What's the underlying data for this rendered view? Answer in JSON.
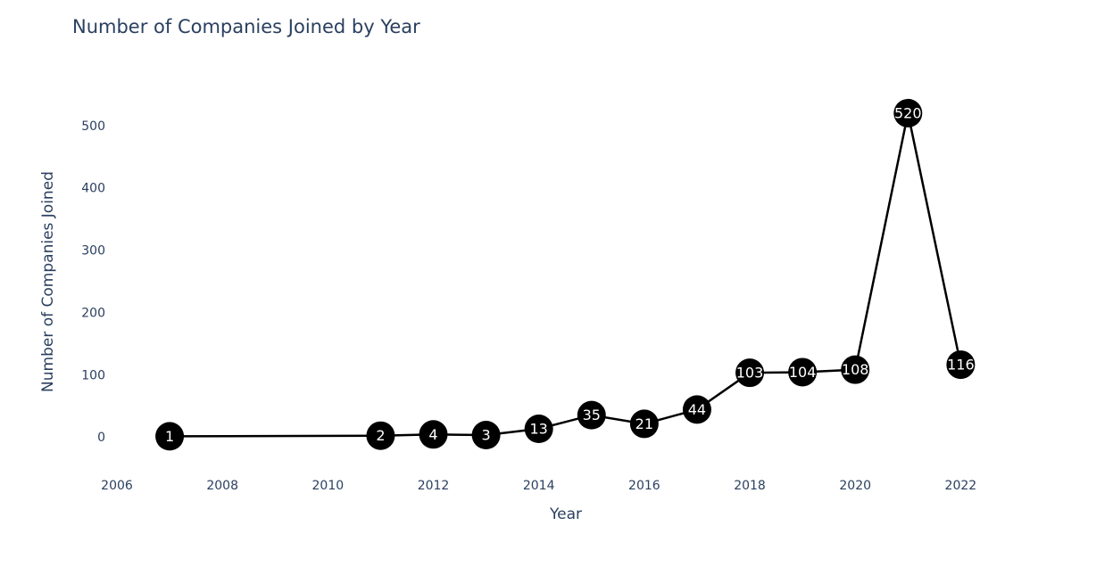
{
  "chart_data": {
    "type": "line",
    "title": "Number of Companies Joined by Year",
    "xlabel": "Year",
    "ylabel": "Number of Companies Joined",
    "x": [
      2007,
      2011,
      2012,
      2013,
      2014,
      2015,
      2016,
      2017,
      2018,
      2019,
      2020,
      2021,
      2022
    ],
    "y": [
      1,
      2,
      4,
      3,
      13,
      35,
      21,
      44,
      103,
      104,
      108,
      520,
      116
    ],
    "point_labels": [
      "1",
      "2",
      "4",
      "3",
      "13",
      "35",
      "21",
      "44",
      "103",
      "104",
      "108",
      "520",
      "116"
    ],
    "x_ticks": [
      2006,
      2008,
      2010,
      2012,
      2014,
      2016,
      2018,
      2020,
      2022
    ],
    "x_tick_labels": [
      "2006",
      "2008",
      "2010",
      "2012",
      "2014",
      "2016",
      "2018",
      "2020",
      "2022"
    ],
    "y_ticks": [
      0,
      100,
      200,
      300,
      400,
      500
    ],
    "y_tick_labels": [
      "0",
      "100",
      "200",
      "300",
      "400",
      "500"
    ],
    "xlim": [
      2006,
      2023.5
    ],
    "ylim": [
      -60,
      560
    ],
    "grid": false,
    "line_color": "#000000",
    "marker_color": "#000000",
    "label_color": "#ffffff"
  }
}
